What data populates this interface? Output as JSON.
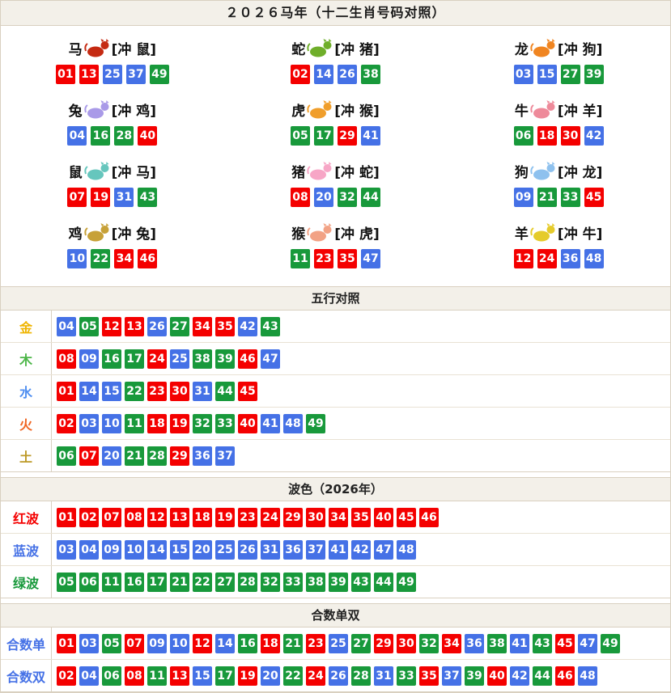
{
  "header": {
    "title": "２０２６马年（十二生肖号码对照）"
  },
  "ball_colors": {
    "red": "#f40000",
    "blue": "#4571e6",
    "green": "#18993b",
    "red_numbers": [
      "01",
      "02",
      "07",
      "08",
      "12",
      "13",
      "18",
      "19",
      "23",
      "24",
      "29",
      "30",
      "34",
      "35",
      "40",
      "45",
      "46"
    ],
    "blue_numbers": [
      "03",
      "04",
      "09",
      "10",
      "14",
      "15",
      "20",
      "25",
      "26",
      "31",
      "36",
      "37",
      "41",
      "42",
      "47",
      "48"
    ],
    "green_numbers": [
      "05",
      "06",
      "11",
      "16",
      "17",
      "21",
      "22",
      "27",
      "28",
      "32",
      "33",
      "38",
      "39",
      "43",
      "44",
      "49"
    ]
  },
  "zodiac": {
    "cells": [
      {
        "name": "马",
        "clash": "[冲 鼠]",
        "icon": "horse-icon",
        "icon_color": "#c52a12",
        "numbers": [
          "01",
          "13",
          "25",
          "37",
          "49"
        ]
      },
      {
        "name": "蛇",
        "clash": "[冲 猪]",
        "icon": "snake-icon",
        "icon_color": "#6fae2a",
        "numbers": [
          "02",
          "14",
          "26",
          "38"
        ]
      },
      {
        "name": "龙",
        "clash": "[冲 狗]",
        "icon": "dragon-icon",
        "icon_color": "#f08521",
        "numbers": [
          "03",
          "15",
          "27",
          "39"
        ]
      },
      {
        "name": "兔",
        "clash": "[冲 鸡]",
        "icon": "rabbit-icon",
        "icon_color": "#a99ae8",
        "numbers": [
          "04",
          "16",
          "28",
          "40"
        ]
      },
      {
        "name": "虎",
        "clash": "[冲 猴]",
        "icon": "tiger-icon",
        "icon_color": "#f09e2b",
        "numbers": [
          "05",
          "17",
          "29",
          "41"
        ]
      },
      {
        "name": "牛",
        "clash": "[冲 羊]",
        "icon": "ox-icon",
        "icon_color": "#ee8a9a",
        "numbers": [
          "06",
          "18",
          "30",
          "42"
        ]
      },
      {
        "name": "鼠",
        "clash": "[冲 马]",
        "icon": "rat-icon",
        "icon_color": "#66c6bd",
        "numbers": [
          "07",
          "19",
          "31",
          "43"
        ]
      },
      {
        "name": "猪",
        "clash": "[冲 蛇]",
        "icon": "pig-icon",
        "icon_color": "#f7a6c6",
        "numbers": [
          "08",
          "20",
          "32",
          "44"
        ]
      },
      {
        "name": "狗",
        "clash": "[冲 龙]",
        "icon": "dog-icon",
        "icon_color": "#8ec1ee",
        "numbers": [
          "09",
          "21",
          "33",
          "45"
        ]
      },
      {
        "name": "鸡",
        "clash": "[冲 兔]",
        "icon": "rooster-icon",
        "icon_color": "#c7a138",
        "numbers": [
          "10",
          "22",
          "34",
          "46"
        ]
      },
      {
        "name": "猴",
        "clash": "[冲 虎]",
        "icon": "monkey-icon",
        "icon_color": "#f2a285",
        "numbers": [
          "11",
          "23",
          "35",
          "47"
        ]
      },
      {
        "name": "羊",
        "clash": "[冲 牛]",
        "icon": "goat-icon",
        "icon_color": "#e5cb2b",
        "numbers": [
          "12",
          "24",
          "36",
          "48"
        ]
      }
    ]
  },
  "five_elements": {
    "section_title": "五行对照",
    "rows": [
      {
        "label": "金",
        "label_color": "#efb400",
        "numbers": [
          "04",
          "05",
          "12",
          "13",
          "26",
          "27",
          "34",
          "35",
          "42",
          "43"
        ]
      },
      {
        "label": "木",
        "label_color": "#4cb648",
        "numbers": [
          "08",
          "09",
          "16",
          "17",
          "24",
          "25",
          "38",
          "39",
          "46",
          "47"
        ]
      },
      {
        "label": "水",
        "label_color": "#4f8ef0",
        "numbers": [
          "01",
          "14",
          "15",
          "22",
          "23",
          "30",
          "31",
          "44",
          "45"
        ]
      },
      {
        "label": "火",
        "label_color": "#f06522",
        "numbers": [
          "02",
          "03",
          "10",
          "11",
          "18",
          "19",
          "32",
          "33",
          "40",
          "41",
          "48",
          "49"
        ]
      },
      {
        "label": "土",
        "label_color": "#bd9a28",
        "numbers": [
          "06",
          "07",
          "20",
          "21",
          "28",
          "29",
          "36",
          "37"
        ]
      }
    ]
  },
  "waves": {
    "section_title": "波色（2026年）",
    "rows": [
      {
        "label": "红波",
        "label_color": "#f40000",
        "numbers": [
          "01",
          "02",
          "07",
          "08",
          "12",
          "13",
          "18",
          "19",
          "23",
          "24",
          "29",
          "30",
          "34",
          "35",
          "40",
          "45",
          "46"
        ]
      },
      {
        "label": "蓝波",
        "label_color": "#4571e6",
        "numbers": [
          "03",
          "04",
          "09",
          "10",
          "14",
          "15",
          "20",
          "25",
          "26",
          "31",
          "36",
          "37",
          "41",
          "42",
          "47",
          "48"
        ]
      },
      {
        "label": "绿波",
        "label_color": "#18993b",
        "numbers": [
          "05",
          "06",
          "11",
          "16",
          "17",
          "21",
          "22",
          "27",
          "28",
          "32",
          "33",
          "38",
          "39",
          "43",
          "44",
          "49"
        ]
      }
    ]
  },
  "sum_parity": {
    "section_title": "合数单双",
    "rows": [
      {
        "label": "合数单",
        "label_color": "#4571e6",
        "numbers": [
          "01",
          "03",
          "05",
          "07",
          "09",
          "10",
          "12",
          "14",
          "16",
          "18",
          "21",
          "23",
          "25",
          "27",
          "29",
          "30",
          "32",
          "34",
          "36",
          "38",
          "41",
          "43",
          "45",
          "47",
          "49"
        ]
      },
      {
        "label": "合数双",
        "label_color": "#4571e6",
        "numbers": [
          "02",
          "04",
          "06",
          "08",
          "11",
          "13",
          "15",
          "17",
          "19",
          "20",
          "22",
          "24",
          "26",
          "28",
          "31",
          "33",
          "35",
          "37",
          "39",
          "40",
          "42",
          "44",
          "46",
          "48"
        ]
      }
    ]
  }
}
